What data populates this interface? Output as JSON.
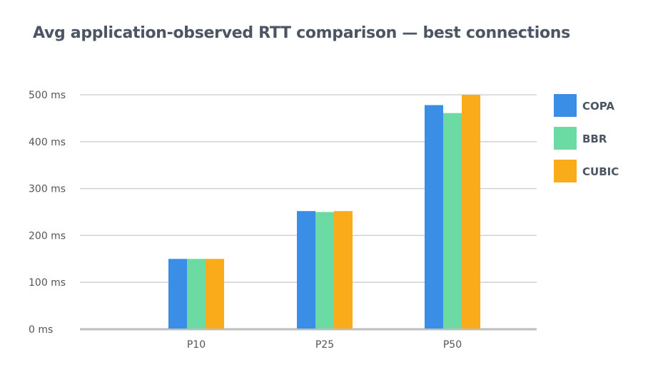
{
  "chart_data": {
    "type": "bar",
    "title": "Avg application-observed RTT comparison — best connections",
    "categories": [
      "P10",
      "P25",
      "P50"
    ],
    "series": [
      {
        "name": "COPA",
        "color": "#3a8ee6",
        "values": [
          150,
          252,
          478
        ]
      },
      {
        "name": "BBR",
        "color": "#6cdaa3",
        "values": [
          150,
          250,
          461
        ]
      },
      {
        "name": "CUBIC",
        "color": "#f9ab1a",
        "values": [
          150,
          252,
          500
        ]
      }
    ],
    "yticks": [
      "0 ms",
      "100 ms",
      "200 ms",
      "300 ms",
      "400 ms",
      "500 ms"
    ],
    "ylim": [
      0,
      500
    ],
    "xlabel": "",
    "ylabel": "",
    "grid": true,
    "legend": "right"
  }
}
